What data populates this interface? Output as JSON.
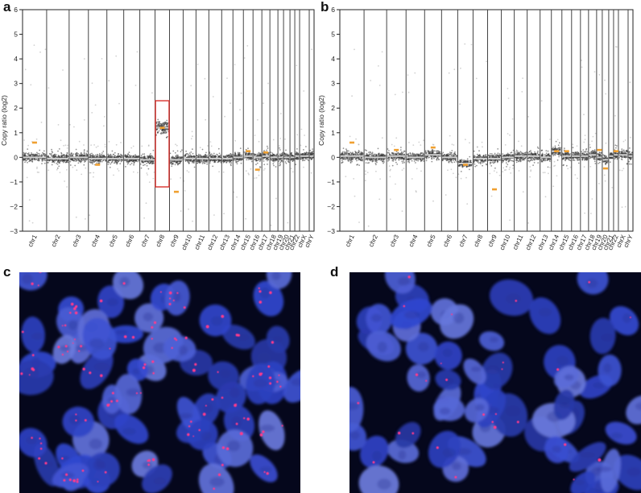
{
  "panels": {
    "a": {
      "letter": "a"
    },
    "b": {
      "letter": "b"
    },
    "c": {
      "letter": "c"
    },
    "d": {
      "letter": "d"
    }
  },
  "chart_data": [
    {
      "type": "scatter",
      "panel": "a",
      "ylabel": "Copy ratio (log2)",
      "xlabel": "",
      "ylim": [
        -3,
        6
      ],
      "yticks": [
        -3,
        -2,
        -1,
        0,
        1,
        2,
        3,
        4,
        5,
        6
      ],
      "categories": [
        "chr1",
        "chr2",
        "chr3",
        "chr4",
        "chr5",
        "chr6",
        "chr7",
        "chr8",
        "chr9",
        "chr10",
        "chr11",
        "chr12",
        "chr13",
        "chr14",
        "chr15",
        "chr16",
        "chr17",
        "chr18",
        "chr19",
        "chr20",
        "chr21",
        "chr22",
        "chrX",
        "chrY"
      ],
      "segment_baseline": [
        0.0,
        -0.05,
        0.0,
        -0.05,
        -0.05,
        -0.05,
        -0.1,
        1.2,
        -0.1,
        -0.05,
        -0.05,
        -0.05,
        -0.05,
        0.0,
        0.05,
        0.0,
        0.05,
        0.0,
        0.0,
        0.0,
        0.0,
        0.05,
        0.05,
        0.05
      ],
      "highlight": {
        "category": "chr8",
        "ymin": -1.2,
        "ymax": 2.3,
        "color": "#d9302b"
      },
      "orange_marks": [
        {
          "chr": "chr1",
          "y": 0.6
        },
        {
          "chr": "chr4",
          "y": -0.3
        },
        {
          "chr": "chr8",
          "y": 1.2
        },
        {
          "chr": "chr9",
          "y": -1.4
        },
        {
          "chr": "chr15",
          "y": 0.25
        },
        {
          "chr": "chr16",
          "y": -0.5
        },
        {
          "chr": "chr17",
          "y": 0.2
        }
      ],
      "grid": false,
      "colors": {
        "points": "#333333",
        "segment": "#f0a030",
        "highlight": "#d9302b"
      }
    },
    {
      "type": "scatter",
      "panel": "b",
      "ylabel": "Copy ratio (log2)",
      "xlabel": "",
      "ylim": [
        -3,
        6
      ],
      "yticks": [
        -3,
        -2,
        -1,
        0,
        1,
        2,
        3,
        4,
        5,
        6
      ],
      "categories": [
        "chr1",
        "chr2",
        "chr3",
        "chr4",
        "chr5",
        "chr6",
        "chr7",
        "chr8",
        "chr9",
        "chr10",
        "chr11",
        "chr12",
        "chr13",
        "chr14",
        "chr15",
        "chr16",
        "chr17",
        "chr18",
        "chr19",
        "chr20",
        "chr21",
        "chr22",
        "chrX",
        "chrY"
      ],
      "segment_baseline": [
        0.05,
        0.0,
        0.05,
        0.0,
        0.1,
        0.0,
        -0.25,
        -0.05,
        -0.05,
        0.0,
        0.05,
        0.05,
        0.0,
        0.25,
        0.05,
        0.05,
        0.05,
        0.1,
        0.0,
        -0.1,
        0.05,
        0.1,
        0.1,
        0.05
      ],
      "orange_marks": [
        {
          "chr": "chr1",
          "y": 0.6
        },
        {
          "chr": "chr3",
          "y": 0.3
        },
        {
          "chr": "chr5",
          "y": 0.4
        },
        {
          "chr": "chr7",
          "y": -0.3
        },
        {
          "chr": "chr9",
          "y": -1.3
        },
        {
          "chr": "chr14",
          "y": 0.25
        },
        {
          "chr": "chr15",
          "y": 0.25
        },
        {
          "chr": "chr19",
          "y": 0.3
        },
        {
          "chr": "chr20",
          "y": -0.45
        },
        {
          "chr": "chr22",
          "y": 0.25
        }
      ],
      "grid": false,
      "colors": {
        "points": "#333333",
        "segment": "#f0a030"
      }
    }
  ],
  "images": {
    "c": {
      "colors": {
        "background": "#05071c",
        "nuclei": "#3a4bd1",
        "signal": "#ff3a8c"
      },
      "signal_density": "high"
    },
    "d": {
      "colors": {
        "background": "#05071c",
        "nuclei": "#3a4bd1",
        "signal": "#ff3a8c"
      },
      "signal_density": "low"
    }
  }
}
